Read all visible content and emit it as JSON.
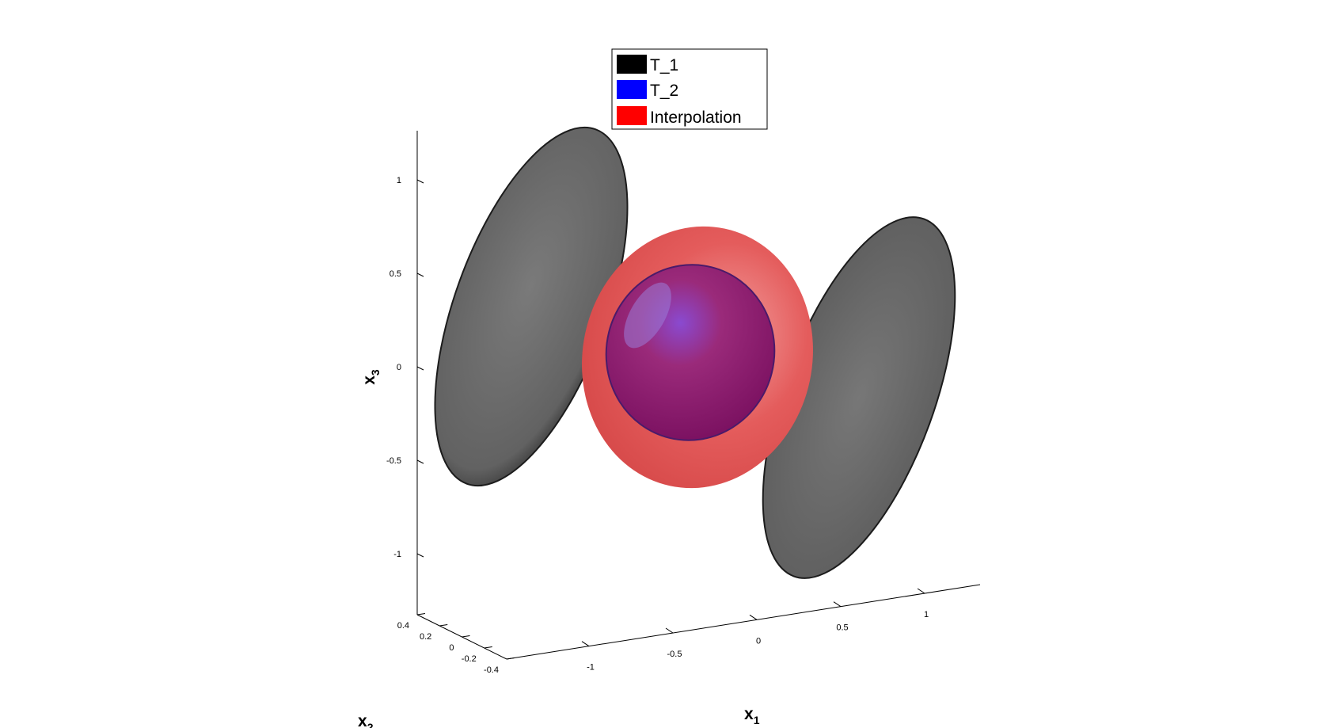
{
  "chart_data": {
    "type": "3d-isosurface",
    "legend": [
      {
        "name": "T_1",
        "color": "#000000"
      },
      {
        "name": "T_2",
        "color": "#0000ff"
      },
      {
        "name": "Interpolation",
        "color": "#ff0000"
      }
    ],
    "xlabel": "x",
    "xlabel_sub": "1",
    "ylabel": "x",
    "ylabel_sub": "2",
    "zlabel": "x",
    "zlabel_sub": "3",
    "x_ticks": [
      "-1",
      "-0.5",
      "0",
      "0.5",
      "1"
    ],
    "y_ticks": [
      "0.4",
      "0.2",
      "0",
      "-0.2",
      "-0.4"
    ],
    "z_ticks": [
      "1",
      "0.5",
      "0",
      "-0.5",
      "-1"
    ],
    "bodies": [
      {
        "series": "T_1",
        "shape": "ellipsoid",
        "center_x1": -1.0,
        "render_color": "#6a6a6a"
      },
      {
        "series": "T_1",
        "shape": "ellipsoid",
        "center_x1": 1.0,
        "render_color": "#6a6a6a"
      },
      {
        "series": "Interpolation",
        "shape": "ellipsoid",
        "center_x1": 0.0,
        "render_color": "#e05050"
      },
      {
        "series": "T_2",
        "shape": "ellipsoid",
        "center_x1": 0.0,
        "render_color": "#9a2070"
      }
    ],
    "legend_position": "top-center",
    "grid": false
  }
}
